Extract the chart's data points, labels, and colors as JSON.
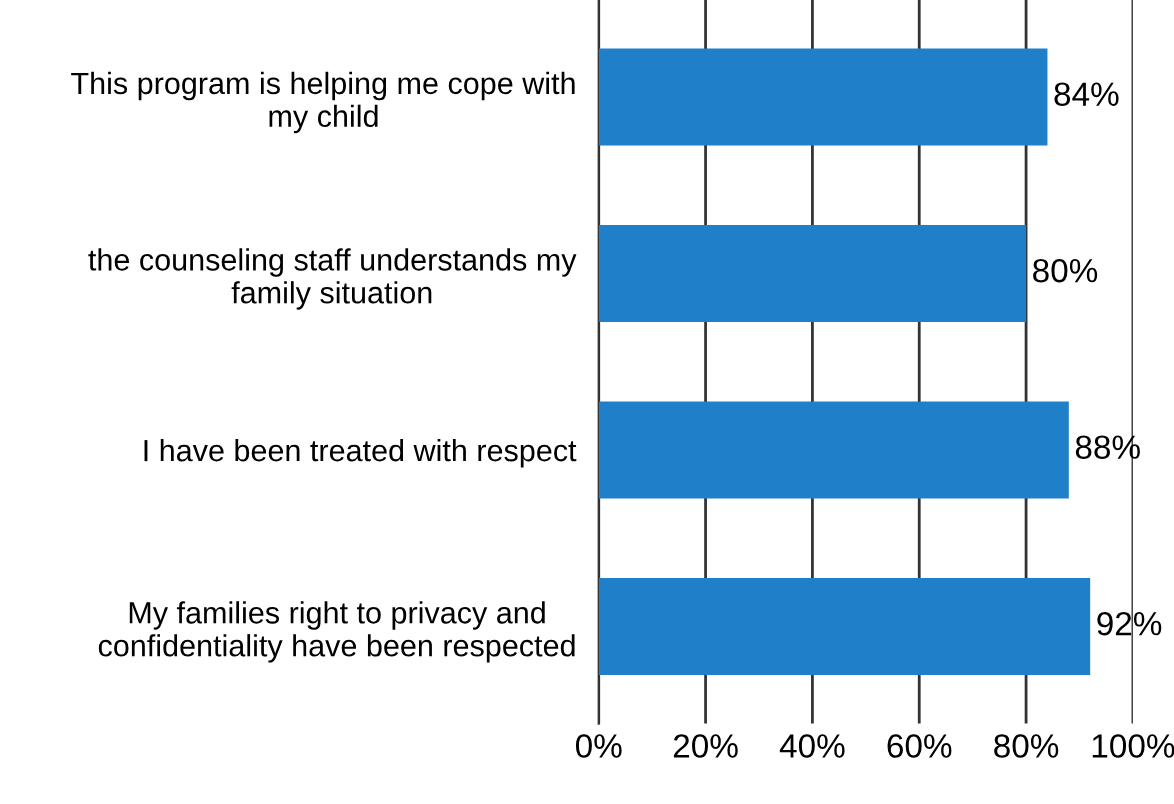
{
  "chart_data": {
    "type": "bar",
    "orientation": "horizontal",
    "categories": [
      "This program is helping me cope with\nmy child",
      "the counseling staff understands my\nfamily situation",
      "I have been treated with respect",
      "My families right to privacy and\nconfidentiality have been respected"
    ],
    "values": [
      84,
      80,
      88,
      92
    ],
    "value_labels": [
      "84%",
      "80%",
      "88%",
      "92%"
    ],
    "color": "#1f7fc8",
    "xlim": [
      0,
      100
    ],
    "xticks": [
      {
        "value": 0,
        "label": "0%"
      },
      {
        "value": 20,
        "label": "20%"
      },
      {
        "value": 40,
        "label": "40%"
      },
      {
        "value": 60,
        "label": "60%"
      },
      {
        "value": 80,
        "label": "80%"
      },
      {
        "value": 100,
        "label": "100%"
      }
    ],
    "grid": "x"
  }
}
